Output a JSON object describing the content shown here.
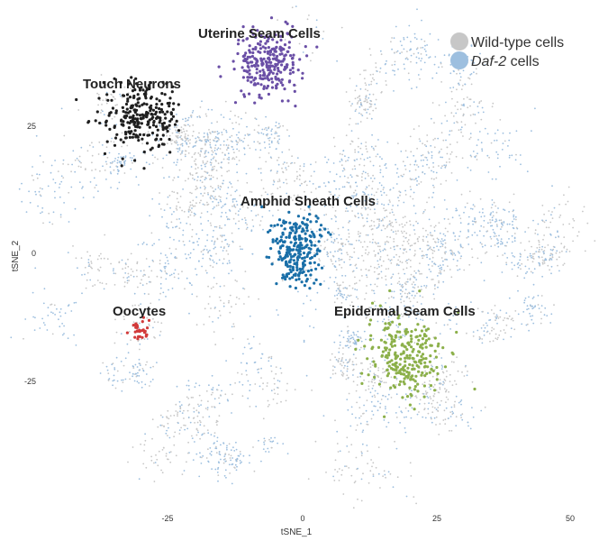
{
  "chart_data": {
    "type": "scatter",
    "title": "",
    "xlabel": "tSNE_1",
    "ylabel": "tSNE_2",
    "xlim": [
      -55,
      50
    ],
    "ylim": [
      -55,
      45
    ],
    "x_ticks": [
      -25,
      0,
      25,
      50
    ],
    "y_ticks": [
      25,
      0,
      -25
    ],
    "grid": false,
    "legend_position": "top-right",
    "background_series": [
      {
        "name": "Wild-type cells",
        "color": "#c7c7c7"
      },
      {
        "name": "Daf-2 cells",
        "color": "#9dbfdf"
      }
    ],
    "background_cloud": {
      "center": [
        0,
        0
      ],
      "radius": 50
    },
    "highlighted_clusters": [
      {
        "name": "Uterine Seam Cells",
        "color": "#6a4fa6",
        "center": [
          -6,
          37
        ],
        "spread": [
          3,
          3.5
        ]
      },
      {
        "name": "Touch Neurons",
        "color": "#1f1f1f",
        "center": [
          -30,
          27
        ],
        "spread": [
          3.5,
          3.5
        ]
      },
      {
        "name": "Amphid Sheath Cells",
        "color": "#1a6fa8",
        "center": [
          -1,
          1
        ],
        "spread": [
          2.5,
          3.5
        ]
      },
      {
        "name": "Oocytes",
        "color": "#d23a3a",
        "center": [
          -30,
          -15
        ],
        "spread": [
          0.9,
          1.2
        ]
      },
      {
        "name": "Epidermal Seam Cells",
        "color": "#8cb04a",
        "center": [
          19,
          -20
        ],
        "spread": [
          3.5,
          4
        ]
      }
    ]
  },
  "legend": {
    "items": [
      {
        "label": "Wild-type cells",
        "italic": "",
        "suffix": "",
        "color": "#c7c7c7"
      },
      {
        "label": "",
        "italic": "Daf-2",
        "suffix": " cells",
        "color": "#9dbfdf"
      }
    ]
  }
}
